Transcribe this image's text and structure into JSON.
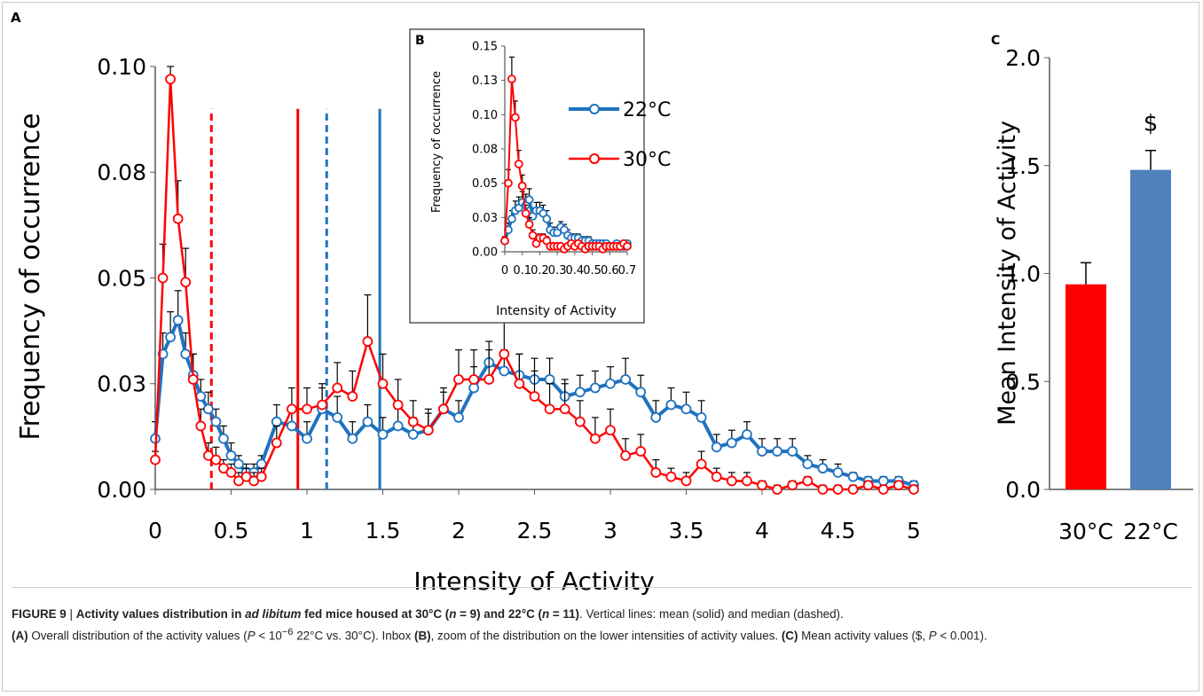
{
  "chart_data": [
    {
      "panel": "A",
      "type": "line",
      "xlabel": "Intensity of Activity",
      "ylabel": "Frequency of occurrence",
      "xlim": [
        0,
        5
      ],
      "ylim": [
        0,
        0.1
      ],
      "xticks": [
        "0",
        "0.5",
        "1",
        "1.5",
        "2",
        "2.5",
        "3",
        "3.5",
        "4",
        "4.5",
        "5"
      ],
      "yticks": [
        "0.00",
        "0.03",
        "0.05",
        "0.08",
        "0.10"
      ],
      "x": [
        0,
        0.05,
        0.1,
        0.15,
        0.2,
        0.25,
        0.3,
        0.35,
        0.4,
        0.45,
        0.5,
        0.55,
        0.6,
        0.65,
        0.7,
        0.8,
        0.9,
        1.0,
        1.1,
        1.2,
        1.3,
        1.4,
        1.5,
        1.6,
        1.7,
        1.8,
        1.9,
        2.0,
        2.1,
        2.2,
        2.3,
        2.4,
        2.5,
        2.6,
        2.7,
        2.8,
        2.9,
        3.0,
        3.1,
        3.2,
        3.3,
        3.4,
        3.5,
        3.6,
        3.7,
        3.8,
        3.9,
        4.0,
        4.1,
        4.2,
        4.3,
        4.4,
        4.5,
        4.6,
        4.7,
        4.8,
        4.9,
        5.0
      ],
      "series": [
        {
          "name": "22°C",
          "color": "#1f72c0",
          "values": [
            0.012,
            0.032,
            0.036,
            0.04,
            0.032,
            0.027,
            0.022,
            0.019,
            0.016,
            0.012,
            0.008,
            0.006,
            0.004,
            0.004,
            0.006,
            0.016,
            0.015,
            0.012,
            0.019,
            0.017,
            0.012,
            0.016,
            0.013,
            0.015,
            0.013,
            0.014,
            0.019,
            0.017,
            0.024,
            0.03,
            0.028,
            0.027,
            0.026,
            0.026,
            0.022,
            0.023,
            0.024,
            0.025,
            0.026,
            0.023,
            0.017,
            0.02,
            0.019,
            0.017,
            0.01,
            0.011,
            0.013,
            0.009,
            0.009,
            0.009,
            0.006,
            0.005,
            0.004,
            0.003,
            0.002,
            0.002,
            0.002,
            0.001
          ],
          "error": [
            0.004,
            0.005,
            0.006,
            0.007,
            0.005,
            0.005,
            0.004,
            0.004,
            0.003,
            0.003,
            0.003,
            0.002,
            0.002,
            0.002,
            0.002,
            0.004,
            0.004,
            0.004,
            0.005,
            0.005,
            0.004,
            0.004,
            0.004,
            0.004,
            0.004,
            0.004,
            0.004,
            0.004,
            0.005,
            0.005,
            0.005,
            0.005,
            0.005,
            0.005,
            0.004,
            0.004,
            0.004,
            0.004,
            0.005,
            0.004,
            0.004,
            0.004,
            0.004,
            0.004,
            0.003,
            0.003,
            0.003,
            0.003,
            0.003,
            0.003,
            0.002,
            0.002,
            0.002,
            0.001,
            0.001,
            0.001,
            0.001,
            0.001
          ]
        },
        {
          "name": "30°C",
          "color": "#ff0000",
          "values": [
            0.007,
            0.05,
            0.097,
            0.064,
            0.049,
            0.026,
            0.015,
            0.008,
            0.007,
            0.005,
            0.004,
            0.002,
            0.003,
            0.002,
            0.003,
            0.011,
            0.019,
            0.019,
            0.02,
            0.024,
            0.022,
            0.035,
            0.025,
            0.02,
            0.016,
            0.014,
            0.019,
            0.026,
            0.026,
            0.026,
            0.032,
            0.025,
            0.022,
            0.019,
            0.019,
            0.016,
            0.012,
            0.014,
            0.008,
            0.009,
            0.004,
            0.003,
            0.002,
            0.006,
            0.003,
            0.002,
            0.002,
            0.001,
            0.0,
            0.001,
            0.002,
            0.0,
            0.0,
            0.0,
            0.001,
            0.0,
            0.001,
            0.0
          ],
          "error": [
            0.002,
            0.008,
            0.01,
            0.009,
            0.008,
            0.006,
            0.004,
            0.003,
            0.003,
            0.002,
            0.002,
            0.002,
            0.002,
            0.002,
            0.002,
            0.004,
            0.005,
            0.005,
            0.005,
            0.006,
            0.006,
            0.011,
            0.007,
            0.006,
            0.005,
            0.005,
            0.005,
            0.007,
            0.007,
            0.007,
            0.01,
            0.007,
            0.006,
            0.006,
            0.006,
            0.005,
            0.005,
            0.005,
            0.004,
            0.004,
            0.003,
            0.002,
            0.002,
            0.003,
            0.002,
            0.002,
            0.002,
            0.001,
            0.001,
            0.001,
            0.001,
            0.001,
            0.001,
            0.001,
            0.001,
            0.001,
            0.001,
            0.001
          ]
        }
      ],
      "vertical_lines": [
        {
          "x": 0.37,
          "color": "#ff0000",
          "style": "dashed",
          "meaning": "median 30°C"
        },
        {
          "x": 0.94,
          "color": "#ff0000",
          "style": "solid",
          "meaning": "mean 30°C"
        },
        {
          "x": 1.13,
          "color": "#1f72c0",
          "style": "dashed",
          "meaning": "median 22°C"
        },
        {
          "x": 1.48,
          "color": "#1f72c0",
          "style": "solid",
          "meaning": "mean 22°C"
        }
      ]
    },
    {
      "panel": "B",
      "type": "line",
      "xlabel": "Intensity of Activity",
      "ylabel": "Frequency of occurrence",
      "xlim": [
        0,
        0.7
      ],
      "ylim": [
        0,
        0.15
      ],
      "xticks": [
        "0",
        "0.1",
        "0.2",
        "0.3",
        "0.4",
        "0.5",
        "0.6",
        "0.7"
      ],
      "yticks": [
        "0.00",
        "0.03",
        "0.05",
        "0.08",
        "0.10",
        "0.13",
        "0.15"
      ],
      "legend": "inside-top",
      "x": [
        0,
        0.02,
        0.04,
        0.06,
        0.08,
        0.1,
        0.12,
        0.14,
        0.16,
        0.18,
        0.2,
        0.22,
        0.24,
        0.26,
        0.28,
        0.3,
        0.32,
        0.34,
        0.36,
        0.38,
        0.4,
        0.42,
        0.44,
        0.46,
        0.48,
        0.5,
        0.52,
        0.54,
        0.56,
        0.58,
        0.6,
        0.62,
        0.64,
        0.66,
        0.68,
        0.7
      ],
      "series": [
        {
          "name": "22°C",
          "color": "#1f72c0",
          "values": [
            0.008,
            0.016,
            0.024,
            0.03,
            0.032,
            0.036,
            0.034,
            0.038,
            0.026,
            0.03,
            0.03,
            0.028,
            0.024,
            0.016,
            0.014,
            0.014,
            0.018,
            0.016,
            0.012,
            0.01,
            0.01,
            0.01,
            0.008,
            0.008,
            0.008,
            0.006,
            0.006,
            0.006,
            0.006,
            0.006,
            0.004,
            0.004,
            0.006,
            0.004,
            0.004,
            0.006
          ],
          "error": [
            0.003,
            0.005,
            0.006,
            0.007,
            0.008,
            0.008,
            0.008,
            0.008,
            0.006,
            0.006,
            0.006,
            0.006,
            0.006,
            0.005,
            0.004,
            0.004,
            0.004,
            0.004,
            0.004,
            0.003,
            0.003,
            0.003,
            0.003,
            0.003,
            0.003,
            0.002,
            0.002,
            0.002,
            0.002,
            0.002,
            0.002,
            0.002,
            0.002,
            0.002,
            0.002,
            0.002
          ]
        },
        {
          "name": "30°C",
          "color": "#ff0000",
          "values": [
            0.008,
            0.05,
            0.126,
            0.098,
            0.064,
            0.048,
            0.028,
            0.02,
            0.012,
            0.006,
            0.01,
            0.01,
            0.008,
            0.004,
            0.004,
            0.004,
            0.004,
            0.002,
            0.004,
            0.006,
            0.004,
            0.006,
            0.004,
            0.002,
            0.004,
            0.004,
            0.004,
            0.004,
            0.002,
            0.004,
            0.004,
            0.004,
            0.004,
            0.004,
            0.006,
            0.004
          ],
          "error": [
            0.003,
            0.01,
            0.016,
            0.012,
            0.01,
            0.008,
            0.006,
            0.005,
            0.004,
            0.003,
            0.003,
            0.003,
            0.003,
            0.002,
            0.002,
            0.002,
            0.002,
            0.002,
            0.002,
            0.002,
            0.002,
            0.002,
            0.002,
            0.002,
            0.002,
            0.002,
            0.002,
            0.002,
            0.002,
            0.002,
            0.002,
            0.002,
            0.002,
            0.002,
            0.002,
            0.002
          ]
        }
      ]
    },
    {
      "panel": "C",
      "type": "bar",
      "categories": [
        "30°C",
        "22°C"
      ],
      "values": [
        0.95,
        1.48
      ],
      "errors": [
        0.1,
        0.09
      ],
      "colors": [
        "#ff0000",
        "#4f81bd"
      ],
      "annotations": [
        "",
        "$"
      ],
      "ylabel": "Mean Intensity of Activity",
      "ylim": [
        0,
        2
      ],
      "yticks": [
        "0.0",
        "0.5",
        "1.0",
        "1.5",
        "2.0"
      ]
    }
  ],
  "panel_labels": {
    "a": "A",
    "b": "B",
    "c": "C"
  },
  "caption": {
    "figure_label": "FIGURE 9",
    "separator": " | ",
    "title_part1": "Activity values distribution in ",
    "title_italic": "ad libitum",
    "title_part2": " fed mice housed at 30°C (",
    "n_sym": "n",
    "title_part3": " = 9) and 22°C (",
    "title_part4": " = 11)",
    "after_title": ". Vertical lines: mean (solid) and median (dashed).",
    "a_label": "(A)",
    "a_text_1": " Overall distribution of the activity values (",
    "p_sym": "P",
    "a_text_2": " < 10",
    "a_sup": "−6",
    "a_text_3": " 22°C vs. 30°C). Inbox ",
    "b_label": "(B)",
    "b_text": ", zoom of the distribution on the lower intensities of activity values. ",
    "c_label": "(C)",
    "c_text_1": " Mean activity values ($, ",
    "c_text_2": " < 0.001)."
  }
}
